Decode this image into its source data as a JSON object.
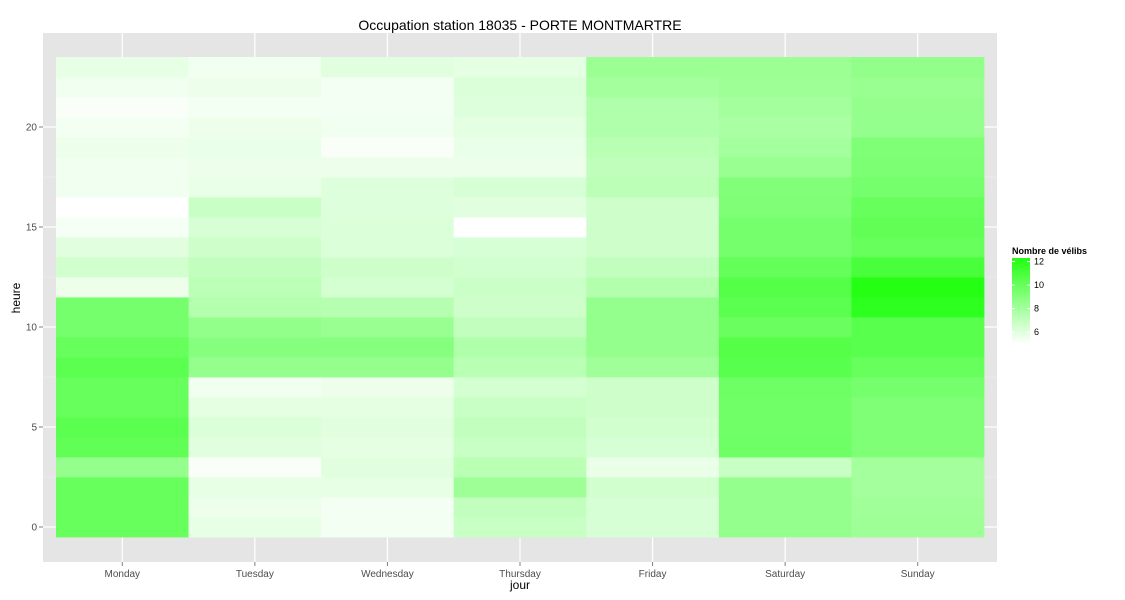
{
  "chart_data": {
    "type": "heatmap",
    "title": "Occupation station 18035 - PORTE MONTMARTRE",
    "xlabel": "jour",
    "ylabel": "heure",
    "x_categories": [
      "Monday",
      "Tuesday",
      "Wednesday",
      "Thursday",
      "Friday",
      "Saturday",
      "Sunday"
    ],
    "y_values": [
      0,
      1,
      2,
      3,
      4,
      5,
      6,
      7,
      8,
      9,
      10,
      11,
      12,
      13,
      14,
      15,
      16,
      17,
      18,
      19,
      20,
      21,
      22,
      23
    ],
    "y_ticks": [
      0,
      5,
      10,
      15,
      20
    ],
    "ylim": [
      -0.5,
      23.5
    ],
    "grid": true,
    "legend": {
      "title": "Nombre de vélibs",
      "position": "right",
      "ticks": [
        6,
        8,
        10,
        12
      ],
      "min": 5,
      "max": 12.3,
      "low_color": "#ffffff",
      "high_color": "#21ff11"
    },
    "values_by_day": {
      "Monday": [
        10.0,
        10.0,
        10.0,
        8.5,
        10.2,
        10.4,
        10.0,
        10.0,
        10.4,
        10.0,
        9.5,
        9.5,
        5.6,
        6.5,
        6.0,
        5.3,
        5.0,
        5.5,
        5.5,
        5.6,
        5.4,
        5.2,
        5.5,
        5.8
      ],
      "Tuesday": [
        5.8,
        5.6,
        5.8,
        5.2,
        6.0,
        6.2,
        5.9,
        5.5,
        8.5,
        9.0,
        8.6,
        7.5,
        7.2,
        7.0,
        6.6,
        6.3,
        6.8,
        5.7,
        5.6,
        5.7,
        5.6,
        5.4,
        5.6,
        5.5
      ],
      "Wednesday": [
        5.4,
        5.4,
        5.8,
        6.0,
        5.9,
        6.0,
        5.9,
        5.6,
        8.5,
        9.0,
        8.4,
        7.4,
        6.4,
        6.6,
        6.2,
        6.2,
        6.1,
        6.1,
        5.6,
        5.2,
        5.5,
        5.4,
        5.4,
        6.0
      ],
      "Thursday": [
        6.8,
        7.0,
        8.2,
        7.3,
        6.8,
        7.0,
        6.8,
        6.4,
        7.3,
        7.6,
        7.0,
        6.6,
        6.7,
        6.5,
        6.3,
        5.0,
        6.0,
        6.3,
        5.6,
        5.7,
        5.9,
        6.1,
        6.2,
        5.9
      ],
      "Friday": [
        6.3,
        6.3,
        6.5,
        5.7,
        6.3,
        6.5,
        6.6,
        6.6,
        8.1,
        8.5,
        8.5,
        8.5,
        7.5,
        7.0,
        6.6,
        6.6,
        6.6,
        7.2,
        7.1,
        7.3,
        7.6,
        7.6,
        8.0,
        8.3
      ],
      "Saturday": [
        8.5,
        8.5,
        8.5,
        6.8,
        9.8,
        9.7,
        9.7,
        9.8,
        10.5,
        10.6,
        9.9,
        10.4,
        10.6,
        10.1,
        9.5,
        9.5,
        9.2,
        9.1,
        8.4,
        8.0,
        7.8,
        8.0,
        8.2,
        8.3
      ],
      "Sunday": [
        8.2,
        8.1,
        8.0,
        8.0,
        9.2,
        9.2,
        9.2,
        9.5,
        10.0,
        10.5,
        10.5,
        11.9,
        12.2,
        11.0,
        10.0,
        10.2,
        10.0,
        9.5,
        9.3,
        9.2,
        8.5,
        8.5,
        8.4,
        8.6
      ]
    }
  }
}
